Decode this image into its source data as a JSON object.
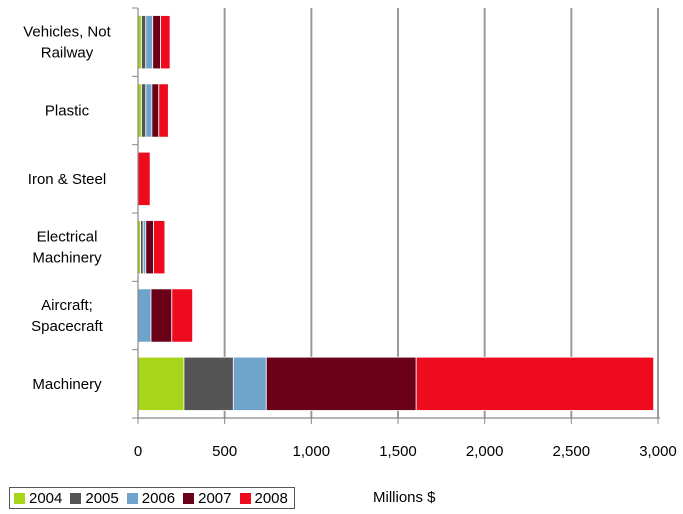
{
  "chart_data": {
    "type": "bar",
    "orientation": "horizontal",
    "stacked": true,
    "categories": [
      [
        "Vehicles, Not",
        "Railway"
      ],
      [
        "Plastic"
      ],
      [
        "Iron & Steel"
      ],
      [
        "Electrical",
        "Machinery"
      ],
      [
        "Aircraft;",
        "Spacecraft"
      ],
      [
        "Machinery"
      ]
    ],
    "series": [
      {
        "name": "2004",
        "color": "#a6d51a",
        "values": [
          20,
          20,
          0,
          15,
          0,
          265
        ]
      },
      {
        "name": "2005",
        "color": "#555555",
        "values": [
          25,
          25,
          0,
          15,
          0,
          285
        ]
      },
      {
        "name": "2006",
        "color": "#6ea3cc",
        "values": [
          40,
          35,
          0,
          15,
          75,
          190
        ]
      },
      {
        "name": "2007",
        "color": "#6b0019",
        "values": [
          45,
          40,
          0,
          45,
          120,
          865
        ]
      },
      {
        "name": "2008",
        "color": "#ee0b1e",
        "values": [
          55,
          55,
          70,
          65,
          120,
          1370
        ]
      }
    ],
    "xlabel": "Millions $",
    "xlim": [
      0,
      3000
    ],
    "xticks": [
      "0",
      "500",
      "1,000",
      "1,500",
      "2,000",
      "2,500",
      "3,000"
    ],
    "grid": true,
    "legend_position": "bottom-left"
  }
}
